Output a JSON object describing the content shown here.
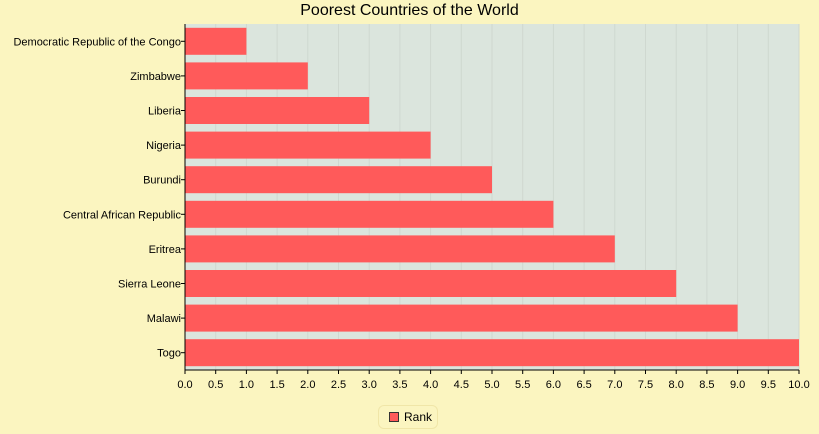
{
  "chart_data": {
    "type": "bar",
    "orientation": "horizontal",
    "title": "Poorest Countries of the World",
    "categories": [
      "Democratic Republic of the Congo",
      "Zimbabwe",
      "Liberia",
      "Nigeria",
      "Burundi",
      "Central African Republic",
      "Eritrea",
      "Sierra Leone",
      "Malawi",
      "Togo"
    ],
    "series": [
      {
        "name": "Rank",
        "values": [
          1,
          2,
          3,
          4,
          5,
          6,
          7,
          8,
          9,
          10
        ],
        "color": "#ff5a5a"
      }
    ],
    "xlim": [
      0,
      10
    ],
    "xticks": [
      "0.0",
      "0.5",
      "1.0",
      "1.5",
      "2.0",
      "2.5",
      "3.0",
      "3.5",
      "4.0",
      "4.5",
      "5.0",
      "5.5",
      "6.0",
      "6.5",
      "7.0",
      "7.5",
      "8.0",
      "8.5",
      "9.0",
      "9.5",
      "10.0"
    ],
    "grid": true,
    "legend_position": "bottom-center",
    "plot_background": "#dbe5dd",
    "page_background": "#fbf5c0"
  }
}
